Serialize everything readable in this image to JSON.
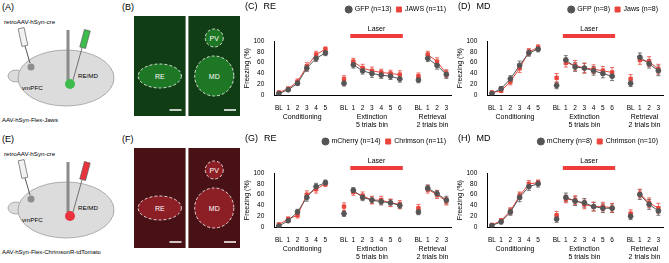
{
  "figure": {
    "panels": [
      {
        "letter": "(A)",
        "type": "schematic",
        "injection": "retroAAV-hSyn-cre",
        "source": "vmPFC",
        "target": "RE/MD",
        "virus": "AAV-hSyn-Flex-Jaws",
        "color": "#3dbb4c"
      },
      {
        "letter": "(B)",
        "type": "image",
        "images": [
          [
            "RE"
          ],
          [
            "PV",
            "MD"
          ]
        ],
        "color": "#2fbf3a"
      },
      {
        "letter": "(E)",
        "type": "schematic",
        "injection": "retroAAV-hSyn-cre",
        "source": "vmPFC",
        "target": "RE/MD",
        "virus": "AAV-hSyn-Flex-ChrimsonR-tdTomato",
        "color": "#e8323c"
      },
      {
        "letter": "(F)",
        "type": "image",
        "images": [
          [
            "RE"
          ],
          [
            "PV",
            "MD"
          ]
        ],
        "color": "#e0303a"
      }
    ]
  },
  "chart_data": [
    {
      "letter": "(C)",
      "type": "line",
      "title": "RE",
      "ylabel": "Freezing (%)",
      "ylim": [
        0,
        100
      ],
      "yticks": [
        0,
        20,
        40,
        60,
        80,
        100
      ],
      "grid": false,
      "legend": "top-right",
      "series": [
        {
          "name": "GFP (n=13)",
          "color": "#555555",
          "marker": "circle"
        },
        {
          "name": "JAWS (n=11)",
          "color": "#e8453c",
          "marker": "square"
        }
      ],
      "phases": [
        {
          "label": "Conditioning",
          "categories": [
            "BL",
            "1",
            "2",
            "3",
            "4",
            "5"
          ],
          "values": [
            [
              3,
              10,
              22,
              50,
              68,
              78
            ],
            [
              5,
              12,
              25,
              53,
              75,
              85
            ]
          ],
          "errors": [
            [
              2,
              3,
              4,
              6,
              6,
              5
            ],
            [
              2,
              3,
              5,
              7,
              6,
              4
            ]
          ]
        },
        {
          "label": "Extinction",
          "sublabel": "5 trials bin",
          "baseline": {
            "category": "BL",
            "values": [
              22,
              30
            ],
            "errors": [
              5,
              6
            ]
          },
          "categories": [
            "1",
            "2",
            "3",
            "4",
            "5",
            "6"
          ],
          "values": [
            [
              56,
              45,
              40,
              37,
              35,
              30
            ],
            [
              62,
              50,
              45,
              42,
              40,
              38
            ]
          ],
          "errors": [
            [
              6,
              6,
              7,
              6,
              6,
              6
            ],
            [
              6,
              7,
              7,
              6,
              6,
              7
            ]
          ],
          "bar": {
            "text": "Laser",
            "color": "#ee3b3b"
          }
        },
        {
          "label": "Retrieval",
          "sublabel": "2 trials bin",
          "baseline": {
            "category": "BL",
            "values": [
              28,
              35
            ],
            "errors": [
              5,
              6
            ]
          },
          "categories": [
            "1",
            "2",
            "3"
          ],
          "values": [
            [
              68,
              55,
              38
            ],
            [
              75,
              62,
              40
            ]
          ],
          "errors": [
            [
              6,
              7,
              7
            ],
            [
              6,
              7,
              7
            ]
          ]
        }
      ]
    },
    {
      "letter": "(D)",
      "type": "line",
      "title": "MD",
      "ylabel": "Freezing (%)",
      "ylim": [
        0,
        100
      ],
      "yticks": [
        0,
        20,
        40,
        60,
        80,
        100
      ],
      "grid": false,
      "legend": "top-right",
      "series": [
        {
          "name": "GFP (n=8)",
          "color": "#555555",
          "marker": "circle"
        },
        {
          "name": "Jaws (n=8)",
          "color": "#e8453c",
          "marker": "square"
        }
      ],
      "phases": [
        {
          "label": "Conditioning",
          "categories": [
            "BL",
            "1",
            "2",
            "3",
            "4",
            "5"
          ],
          "values": [
            [
              3,
              12,
              30,
              55,
              78,
              85
            ],
            [
              5,
              8,
              25,
              50,
              80,
              88
            ]
          ],
          "errors": [
            [
              2,
              4,
              6,
              8,
              6,
              5
            ],
            [
              2,
              3,
              6,
              8,
              6,
              5
            ]
          ]
        },
        {
          "label": "Extinction",
          "sublabel": "5 trials bin",
          "baseline": {
            "category": "BL",
            "values": [
              18,
              32
            ],
            "errors": [
              6,
              8
            ]
          },
          "categories": [
            "1",
            "2",
            "3",
            "4",
            "5",
            "6"
          ],
          "values": [
            [
              65,
              52,
              50,
              45,
              40,
              35
            ],
            [
              60,
              55,
              50,
              48,
              45,
              42
            ]
          ],
          "errors": [
            [
              8,
              8,
              9,
              8,
              8,
              8
            ],
            [
              8,
              9,
              9,
              8,
              8,
              9
            ]
          ],
          "bar": {
            "text": "Laser",
            "color": "#ee3b3b"
          }
        },
        {
          "label": "Retrieval",
          "sublabel": "2 trials bin",
          "baseline": {
            "category": "BL",
            "values": [
              22,
              30
            ],
            "errors": [
              6,
              8
            ]
          },
          "categories": [
            "1",
            "2",
            "3"
          ],
          "values": [
            [
              70,
              58,
              45
            ],
            [
              65,
              62,
              48
            ]
          ],
          "errors": [
            [
              8,
              8,
              9
            ],
            [
              8,
              9,
              9
            ]
          ]
        }
      ]
    },
    {
      "letter": "(G)",
      "type": "line",
      "title": "RE",
      "ylabel": "Freezing (%)",
      "ylim": [
        0,
        100
      ],
      "yticks": [
        0,
        20,
        40,
        60,
        80,
        100
      ],
      "grid": false,
      "legend": "top-right",
      "series": [
        {
          "name": "mCherry (n=14)",
          "color": "#555555",
          "marker": "circle"
        },
        {
          "name": "Chrimson (n=11)",
          "color": "#e8453c",
          "marker": "square"
        }
      ],
      "phases": [
        {
          "label": "Conditioning",
          "categories": [
            "BL",
            "1",
            "2",
            "3",
            "4",
            "5"
          ],
          "values": [
            [
              2,
              12,
              28,
              55,
              75,
              82
            ],
            [
              5,
              15,
              22,
              60,
              70,
              80
            ]
          ],
          "errors": [
            [
              2,
              3,
              5,
              7,
              6,
              5
            ],
            [
              2,
              4,
              5,
              7,
              7,
              5
            ]
          ]
        },
        {
          "label": "Extinction",
          "sublabel": "5 trials bin",
          "baseline": {
            "category": "BL",
            "values": [
              25,
              38
            ],
            "errors": [
              5,
              7
            ]
          },
          "categories": [
            "1",
            "2",
            "3",
            "4",
            "5",
            "6"
          ],
          "values": [
            [
              68,
              55,
              50,
              47,
              45,
              40
            ],
            [
              65,
              58,
              50,
              50,
              45,
              42
            ]
          ],
          "errors": [
            [
              5,
              6,
              6,
              6,
              6,
              6
            ],
            [
              6,
              7,
              7,
              7,
              7,
              7
            ]
          ],
          "bar": {
            "text": "Laser",
            "color": "#ee3b3b"
          }
        },
        {
          "label": "Retrieval",
          "sublabel": "2 trials bin",
          "baseline": {
            "category": "BL",
            "values": [
              28,
              35
            ],
            "errors": [
              5,
              7
            ]
          },
          "categories": [
            "1",
            "2",
            "3"
          ],
          "values": [
            [
              72,
              62,
              50
            ],
            [
              70,
              60,
              48
            ]
          ],
          "errors": [
            [
              6,
              6,
              7
            ],
            [
              7,
              7,
              7
            ]
          ]
        }
      ]
    },
    {
      "letter": "(H)",
      "type": "line",
      "title": "MD",
      "ylabel": "Freezing (%)",
      "ylim": [
        0,
        100
      ],
      "yticks": [
        0,
        20,
        40,
        60,
        80,
        100
      ],
      "grid": false,
      "legend": "top-right",
      "series": [
        {
          "name": "mCherry (n=8)",
          "color": "#555555",
          "marker": "circle"
        },
        {
          "name": "Chrimson (n=10)",
          "color": "#e8453c",
          "marker": "square"
        }
      ],
      "phases": [
        {
          "label": "Conditioning",
          "categories": [
            "BL",
            "1",
            "2",
            "3",
            "4",
            "5"
          ],
          "values": [
            [
              3,
              10,
              28,
              55,
              75,
              80
            ],
            [
              4,
              12,
              30,
              58,
              80,
              82
            ]
          ],
          "errors": [
            [
              2,
              4,
              6,
              8,
              7,
              6
            ],
            [
              2,
              4,
              6,
              7,
              6,
              5
            ]
          ]
        },
        {
          "label": "Extinction",
          "sublabel": "5 trials bin",
          "baseline": {
            "category": "BL",
            "values": [
              15,
              22
            ],
            "errors": [
              6,
              7
            ]
          },
          "categories": [
            "1",
            "2",
            "3",
            "4",
            "5",
            "6"
          ],
          "values": [
            [
              55,
              48,
              45,
              38,
              35,
              35
            ],
            [
              52,
              50,
              42,
              38,
              38,
              36
            ]
          ],
          "errors": [
            [
              8,
              8,
              8,
              8,
              8,
              8
            ],
            [
              7,
              8,
              8,
              8,
              8,
              8
            ]
          ],
          "bar": {
            "text": "Laser",
            "color": "#ee3b3b"
          }
        },
        {
          "label": "Retrieval",
          "sublabel": "2 trials bin",
          "baseline": {
            "category": "BL",
            "values": [
              20,
              25
            ],
            "errors": [
              6,
              7
            ]
          },
          "categories": [
            "1",
            "2",
            "3"
          ],
          "values": [
            [
              60,
              42,
              30
            ],
            [
              62,
              45,
              35
            ]
          ],
          "errors": [
            [
              9,
              9,
              8
            ],
            [
              8,
              9,
              9
            ]
          ]
        }
      ]
    }
  ]
}
